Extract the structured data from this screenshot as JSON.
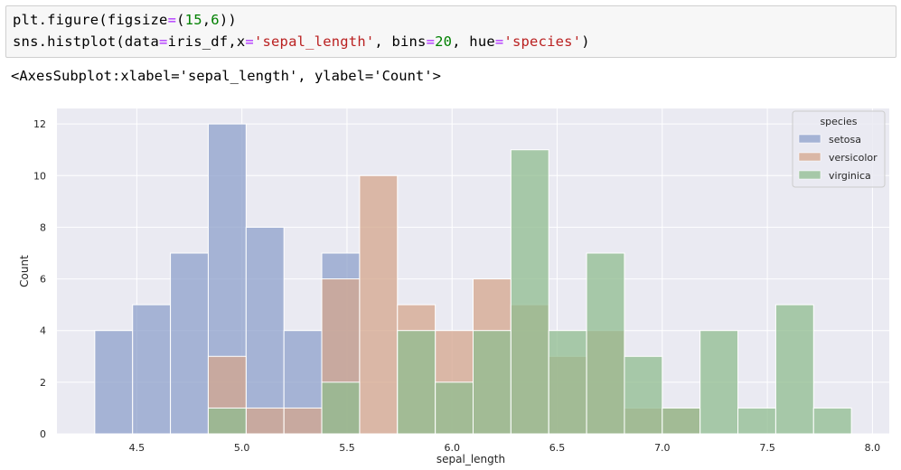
{
  "code": {
    "line1": {
      "p1": "plt.figure(figsize",
      "eq": "=",
      "p2": "(",
      "n1": "15",
      "p3": ",",
      "n2": "6",
      "p4": "))"
    },
    "line2": {
      "p1": "sns.histplot(data",
      "eq1": "=",
      "p2": "iris_df,x",
      "eq2": "=",
      "s1": "'sepal_length'",
      "p3": ", bins",
      "eq3": "=",
      "n1": "20",
      "p4": ", hue",
      "eq4": "=",
      "s2": "'species'",
      "p5": ")"
    }
  },
  "output_text": "<AxesSubplot:xlabel='sepal_length', ylabel='Count'>",
  "chart_data": {
    "type": "bar",
    "xlabel": "sepal_length",
    "ylabel": "Count",
    "xlim": [
      4.12,
      8.08
    ],
    "ylim": [
      0,
      12.6
    ],
    "bin_start": 4.3,
    "bin_width": 0.18,
    "xticks": [
      "4.5",
      "5.0",
      "5.5",
      "6.0",
      "6.5",
      "7.0",
      "7.5",
      "8.0"
    ],
    "yticks": [
      "0",
      "2",
      "4",
      "6",
      "8",
      "10",
      "12"
    ],
    "grid": true,
    "legend_title": "species",
    "legend_position": "top-right",
    "series": [
      {
        "name": "setosa",
        "color": "#8da0cb",
        "values": [
          4,
          5,
          7,
          12,
          8,
          4,
          7,
          0,
          0,
          0,
          0,
          0,
          0,
          0,
          0,
          0,
          0,
          0,
          0,
          0
        ]
      },
      {
        "name": "versicolor",
        "color": "#d4a58c",
        "values": [
          0,
          0,
          0,
          3,
          1,
          1,
          6,
          10,
          5,
          4,
          6,
          5,
          3,
          4,
          1,
          1,
          0,
          0,
          0,
          0
        ]
      },
      {
        "name": "virginica",
        "color": "#8fbc8f",
        "values": [
          0,
          0,
          0,
          1,
          0,
          0,
          2,
          0,
          4,
          2,
          4,
          11,
          4,
          7,
          3,
          1,
          4,
          1,
          5,
          1
        ]
      }
    ]
  }
}
